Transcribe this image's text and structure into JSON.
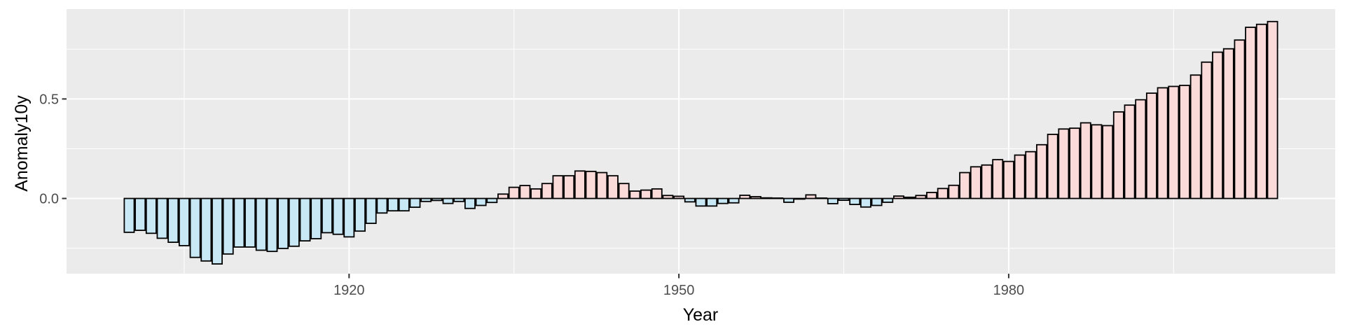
{
  "chart_data": {
    "type": "bar",
    "xlabel": "Year",
    "ylabel": "Anomaly10y",
    "xlim": [
      1894.3,
      2009.7
    ],
    "ylim": [
      -0.378,
      0.9515
    ],
    "grid": true,
    "legend": "none",
    "x_major_ticks": [
      1920,
      1950,
      1980
    ],
    "x_minor_gridlines": [
      1905,
      1935,
      1965,
      1995
    ],
    "y_major_ticks": [
      {
        "value": 0.0,
        "label": "0.0"
      },
      {
        "value": 0.5,
        "label": "0.5"
      }
    ],
    "y_minor_gridlines": [
      -0.25,
      0.25,
      0.75
    ],
    "categories": [
      1900,
      1901,
      1902,
      1903,
      1904,
      1905,
      1906,
      1907,
      1908,
      1909,
      1910,
      1911,
      1912,
      1913,
      1914,
      1915,
      1916,
      1917,
      1918,
      1919,
      1920,
      1921,
      1922,
      1923,
      1924,
      1925,
      1926,
      1927,
      1928,
      1929,
      1930,
      1931,
      1932,
      1933,
      1934,
      1935,
      1936,
      1937,
      1938,
      1939,
      1940,
      1941,
      1942,
      1943,
      1944,
      1945,
      1946,
      1947,
      1948,
      1949,
      1950,
      1951,
      1952,
      1953,
      1954,
      1955,
      1956,
      1957,
      1958,
      1959,
      1960,
      1961,
      1962,
      1963,
      1964,
      1965,
      1966,
      1967,
      1968,
      1969,
      1970,
      1971,
      1972,
      1973,
      1974,
      1975,
      1976,
      1977,
      1978,
      1979,
      1980,
      1981,
      1982,
      1983,
      1984,
      1985,
      1986,
      1987,
      1988,
      1989,
      1990,
      1991,
      1992,
      1993,
      1994,
      1995,
      1996,
      1997,
      1998,
      1999,
      2000,
      2001,
      2002,
      2003,
      2004
    ],
    "values": [
      -0.17,
      -0.16,
      -0.175,
      -0.2,
      -0.22,
      -0.237,
      -0.296,
      -0.314,
      -0.329,
      -0.279,
      -0.244,
      -0.244,
      -0.26,
      -0.266,
      -0.251,
      -0.24,
      -0.213,
      -0.202,
      -0.172,
      -0.18,
      -0.193,
      -0.164,
      -0.125,
      -0.073,
      -0.062,
      -0.062,
      -0.044,
      -0.015,
      -0.01,
      -0.025,
      -0.015,
      -0.05,
      -0.035,
      -0.02,
      0.022,
      0.056,
      0.065,
      0.048,
      0.075,
      0.114,
      0.114,
      0.138,
      0.136,
      0.13,
      0.114,
      0.075,
      0.037,
      0.042,
      0.048,
      0.015,
      0.011,
      -0.017,
      -0.038,
      -0.038,
      -0.025,
      -0.022,
      0.016,
      0.009,
      0.003,
      0.002,
      -0.019,
      -0.003,
      0.018,
      0.002,
      -0.026,
      -0.009,
      -0.03,
      -0.043,
      -0.035,
      -0.019,
      0.012,
      0.006,
      0.015,
      0.03,
      0.05,
      0.066,
      0.13,
      0.159,
      0.168,
      0.195,
      0.186,
      0.218,
      0.235,
      0.27,
      0.322,
      0.349,
      0.353,
      0.38,
      0.37,
      0.366,
      0.435,
      0.469,
      0.496,
      0.529,
      0.556,
      0.563,
      0.568,
      0.62,
      0.685,
      0.735,
      0.752,
      0.796,
      0.86,
      0.875,
      0.889
    ],
    "colors": {
      "positive_fill": "#FBDADA",
      "negative_fill": "#C9E8F6",
      "bar_stroke": "#000000",
      "panel_background": "#EBEBEB",
      "gridline": "#FFFFFF",
      "tick_label": "#4D4D4D",
      "tick_mark": "#333333",
      "axis_title": "#000000"
    }
  }
}
